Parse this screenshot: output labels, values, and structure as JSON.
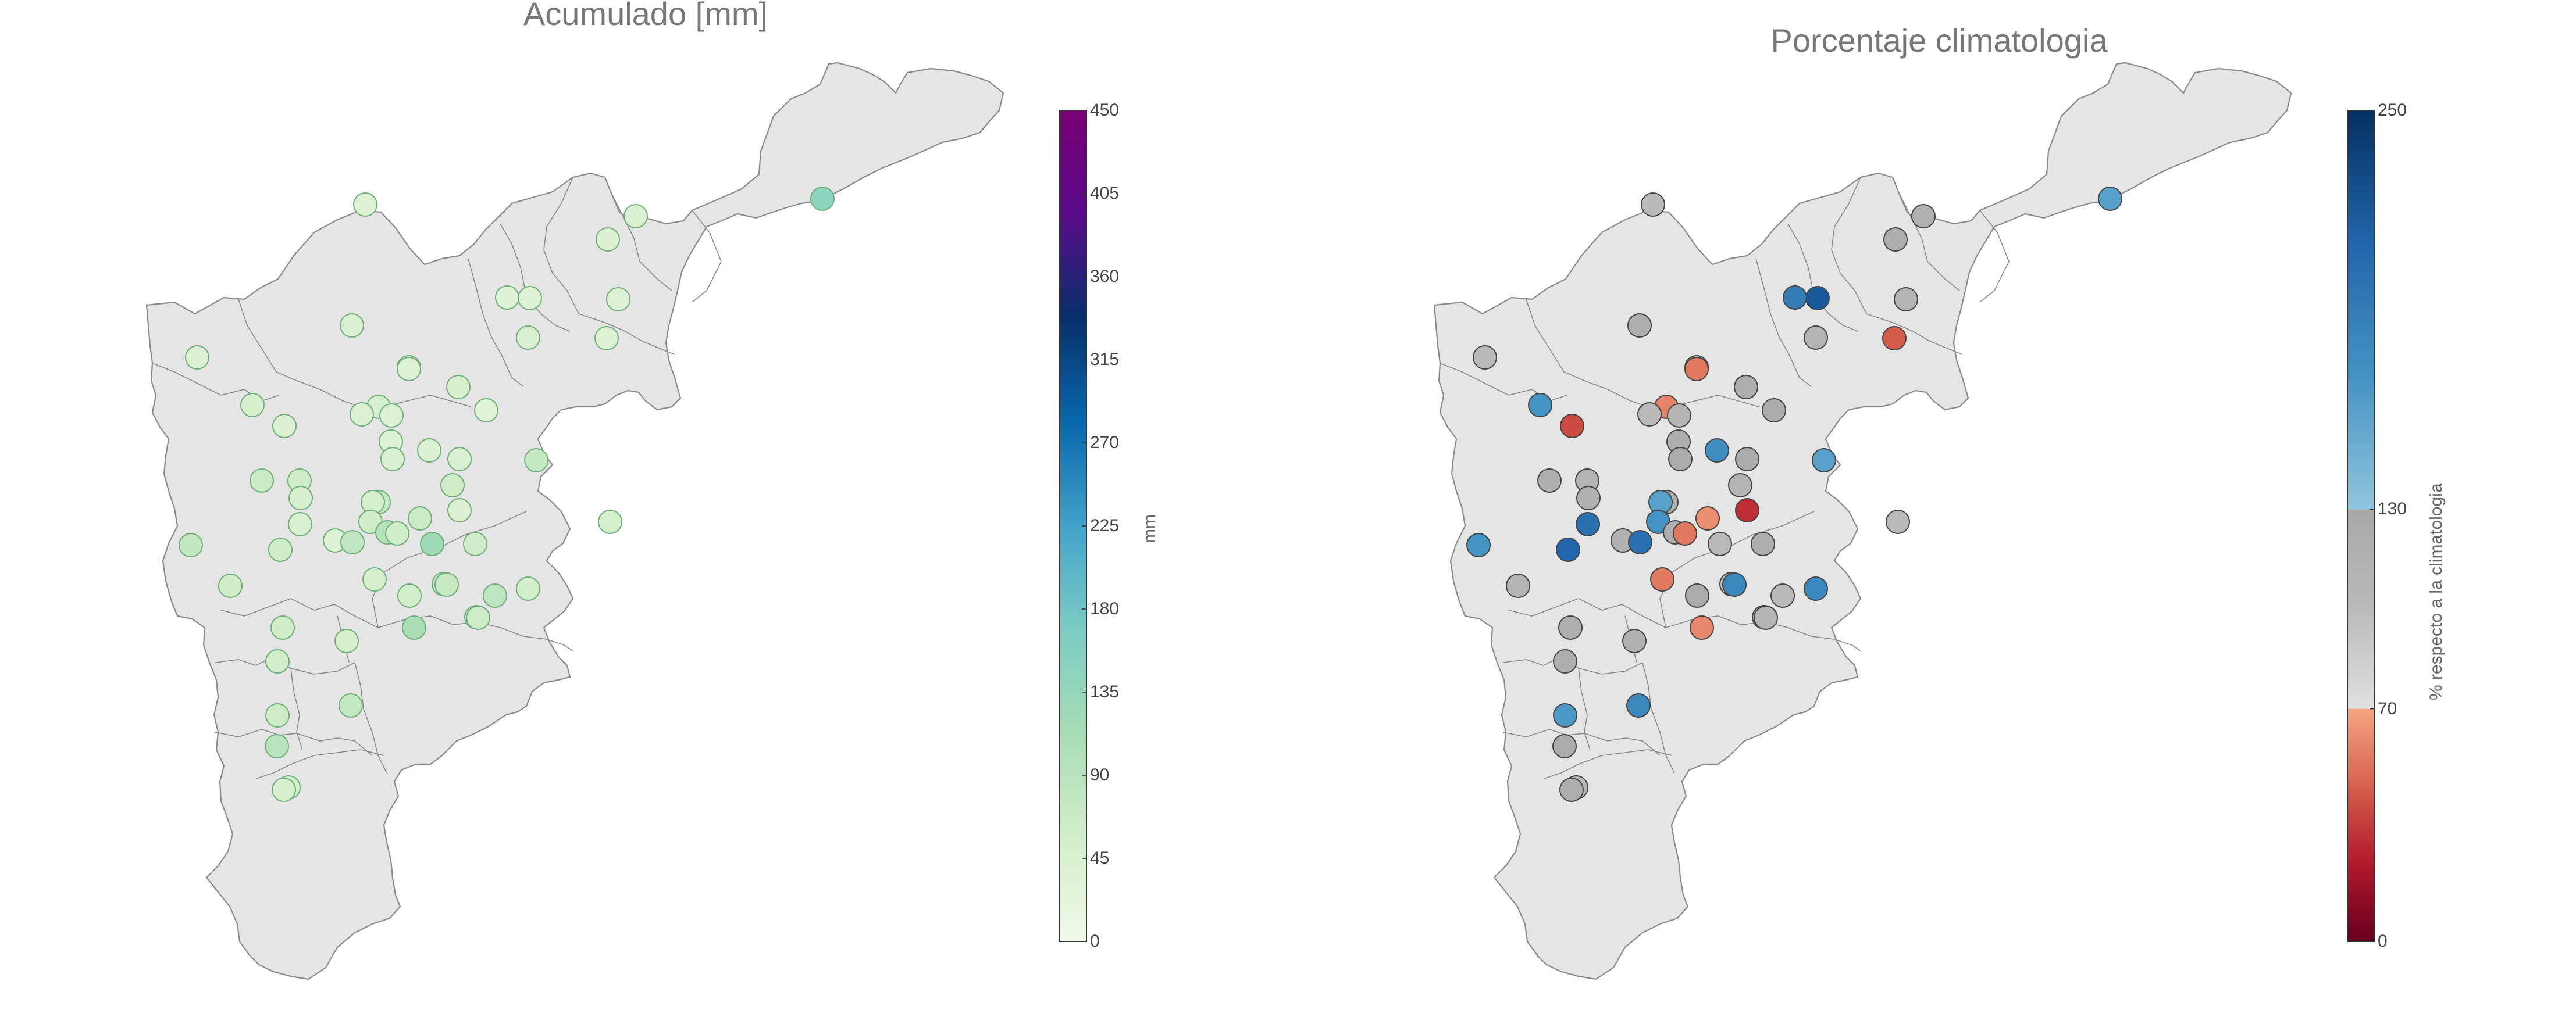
{
  "maps": {
    "left": {
      "title": "Acumulado [mm]",
      "colorbar": {
        "unit_label": "mm",
        "tick_labels": [
          "0",
          "45",
          "90",
          "135",
          "180",
          "225",
          "270",
          "315",
          "360",
          "405",
          "450"
        ],
        "range": [
          0,
          450
        ],
        "colors": [
          "#f0f9e8",
          "#d2eec9",
          "#a8ddb5",
          "#7bccc4",
          "#43a2ca",
          "#0868ac",
          "#08306b",
          "#5a0b8a",
          "#7a0177"
        ]
      },
      "stations": [
        {
          "id": "L1",
          "value": 38
        },
        {
          "id": "L2",
          "value": 145
        },
        {
          "id": "L3",
          "value": 42
        },
        {
          "id": "L4",
          "value": 40
        },
        {
          "id": "L5",
          "value": 35
        },
        {
          "id": "L6",
          "value": 38
        },
        {
          "id": "L7",
          "value": 33
        },
        {
          "id": "L8",
          "value": 40
        },
        {
          "id": "L9",
          "value": 45
        },
        {
          "id": "L10",
          "value": 36
        },
        {
          "id": "L11",
          "value": 30
        },
        {
          "id": "L12",
          "value": 50
        },
        {
          "id": "L13",
          "value": 40
        },
        {
          "id": "L14",
          "value": 35
        },
        {
          "id": "L15",
          "value": 48
        },
        {
          "id": "L16",
          "value": 32
        },
        {
          "id": "L17",
          "value": 42
        },
        {
          "id": "L18",
          "value": 46
        },
        {
          "id": "L19",
          "value": 40
        },
        {
          "id": "L20",
          "value": 36
        },
        {
          "id": "L21",
          "value": 38
        },
        {
          "id": "L22",
          "value": 42
        },
        {
          "id": "L23",
          "value": 40
        },
        {
          "id": "L24",
          "value": 44
        },
        {
          "id": "L25",
          "value": 75
        },
        {
          "id": "L26",
          "value": 58
        },
        {
          "id": "L27",
          "value": 65
        },
        {
          "id": "L28",
          "value": 48
        },
        {
          "id": "L29",
          "value": 72
        },
        {
          "id": "L30",
          "value": 52
        },
        {
          "id": "L31",
          "value": 44
        },
        {
          "id": "L32",
          "value": 58
        },
        {
          "id": "L33",
          "value": 66
        },
        {
          "id": "L34",
          "value": 40
        },
        {
          "id": "L35",
          "value": 38
        },
        {
          "id": "L36",
          "value": 60
        },
        {
          "id": "L37",
          "value": 95
        },
        {
          "id": "L38",
          "value": 80
        },
        {
          "id": "L39",
          "value": 78
        },
        {
          "id": "L40",
          "value": 60
        },
        {
          "id": "L41",
          "value": 62
        },
        {
          "id": "L42",
          "value": 125
        },
        {
          "id": "L43",
          "value": 60
        },
        {
          "id": "L44",
          "value": 52
        },
        {
          "id": "L45",
          "value": 58
        },
        {
          "id": "L46",
          "value": 55
        },
        {
          "id": "L47",
          "value": 70
        },
        {
          "id": "L48",
          "value": 48
        },
        {
          "id": "L49",
          "value": 55
        },
        {
          "id": "L50",
          "value": 72
        },
        {
          "id": "L51",
          "value": 60
        },
        {
          "id": "L52",
          "value": 85
        },
        {
          "id": "L53",
          "value": 58
        },
        {
          "id": "L54",
          "value": 110
        },
        {
          "id": "L55",
          "value": 48
        },
        {
          "id": "L56",
          "value": 56
        },
        {
          "id": "L57",
          "value": 62
        },
        {
          "id": "L58",
          "value": 75
        },
        {
          "id": "L59",
          "value": 62
        },
        {
          "id": "L60",
          "value": 90
        },
        {
          "id": "L61",
          "value": 55
        },
        {
          "id": "L62",
          "value": 48
        }
      ]
    },
    "right": {
      "title": "Porcentaje climatologia",
      "colorbar": {
        "unit_label": "% respecto a la climatologia",
        "tick_labels": [
          "0",
          "70",
          "130",
          "250"
        ],
        "ticks": [
          0,
          70,
          130,
          250
        ],
        "range": [
          0,
          250
        ],
        "colors_low": [
          "#67001f",
          "#b2182b",
          "#d6604d",
          "#f4a582"
        ],
        "colors_mid": [
          "#e0e0e0",
          "#bababa",
          "#a8a8a8"
        ],
        "colors_high": [
          "#92c5de",
          "#4393c3",
          "#2166ac",
          "#053061"
        ]
      },
      "stations": [
        {
          "id": "R1",
          "value": 100
        },
        {
          "id": "R2",
          "value": 160
        },
        {
          "id": "R3",
          "value": 115
        },
        {
          "id": "R4",
          "value": 120
        },
        {
          "id": "R5",
          "value": 110
        },
        {
          "id": "R6",
          "value": 220
        },
        {
          "id": "R7",
          "value": 190
        },
        {
          "id": "R8",
          "value": 100
        },
        {
          "id": "R9",
          "value": 120
        },
        {
          "id": "R10",
          "value": 45
        },
        {
          "id": "R11",
          "value": 100
        },
        {
          "id": "R12",
          "value": 170
        },
        {
          "id": "R13",
          "value": 40
        },
        {
          "id": "R14",
          "value": 55
        },
        {
          "id": "R15",
          "value": 120
        },
        {
          "id": "R16",
          "value": 125
        },
        {
          "id": "R17",
          "value": 110
        },
        {
          "id": "R18",
          "value": 58
        },
        {
          "id": "R19",
          "value": 100
        },
        {
          "id": "R20",
          "value": 110
        },
        {
          "id": "R21",
          "value": 120
        },
        {
          "id": "R22",
          "value": 125
        },
        {
          "id": "R23",
          "value": 175
        },
        {
          "id": "R24",
          "value": 125
        },
        {
          "id": "R25",
          "value": 160
        },
        {
          "id": "R26",
          "value": 110
        },
        {
          "id": "R27",
          "value": 120
        },
        {
          "id": "R28",
          "value": 115
        },
        {
          "id": "R29",
          "value": 120
        },
        {
          "id": "R30",
          "value": 160
        },
        {
          "id": "R31",
          "value": 200
        },
        {
          "id": "R32",
          "value": 110
        },
        {
          "id": "R33",
          "value": 62
        },
        {
          "id": "R34",
          "value": 30
        },
        {
          "id": "R35",
          "value": 115
        },
        {
          "id": "R36",
          "value": 170
        },
        {
          "id": "R37",
          "value": 120
        },
        {
          "id": "R38",
          "value": 200
        },
        {
          "id": "R39",
          "value": 170
        },
        {
          "id": "R40",
          "value": 210
        },
        {
          "id": "R41",
          "value": 120
        },
        {
          "id": "R42",
          "value": 100
        },
        {
          "id": "R43",
          "value": 55
        },
        {
          "id": "R44",
          "value": 100
        },
        {
          "id": "R45",
          "value": 110
        },
        {
          "id": "R46",
          "value": 180
        },
        {
          "id": "R47",
          "value": 100
        },
        {
          "id": "R48",
          "value": 55
        },
        {
          "id": "R49",
          "value": 125
        },
        {
          "id": "R50",
          "value": 180
        },
        {
          "id": "R51",
          "value": 120
        },
        {
          "id": "R52",
          "value": 100
        },
        {
          "id": "R53",
          "value": 115
        },
        {
          "id": "R54",
          "value": 60
        },
        {
          "id": "R55",
          "value": 115
        },
        {
          "id": "R56",
          "value": 120
        },
        {
          "id": "R57",
          "value": 110
        },
        {
          "id": "R58",
          "value": 180
        },
        {
          "id": "R59",
          "value": 165
        },
        {
          "id": "R60",
          "value": 125
        },
        {
          "id": "R61",
          "value": 100
        },
        {
          "id": "R62",
          "value": 120
        }
      ]
    }
  }
}
